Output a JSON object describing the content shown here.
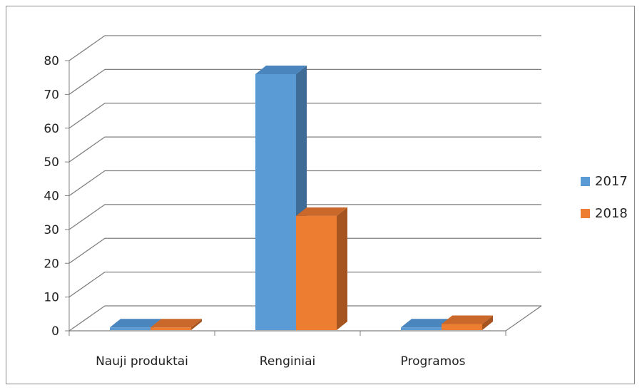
{
  "chart_data": {
    "type": "bar",
    "style": "3d-clustered-column",
    "categories": [
      "Nauji produktai",
      "Renginiai",
      "Programos"
    ],
    "series": [
      {
        "name": "2017",
        "values": [
          1,
          76,
          1
        ],
        "color": "#5b9bd5",
        "side_color": "#3f6c96",
        "top_color": "#4a86bd"
      },
      {
        "name": "2018",
        "values": [
          1,
          34,
          2
        ],
        "color": "#ed7d31",
        "side_color": "#a65420",
        "top_color": "#c9682a"
      }
    ],
    "ylim": [
      0,
      80
    ],
    "yticks": [
      "0",
      "10",
      "20",
      "30",
      "40",
      "50",
      "60",
      "70",
      "80"
    ],
    "grid": true,
    "legend_position": "right"
  }
}
